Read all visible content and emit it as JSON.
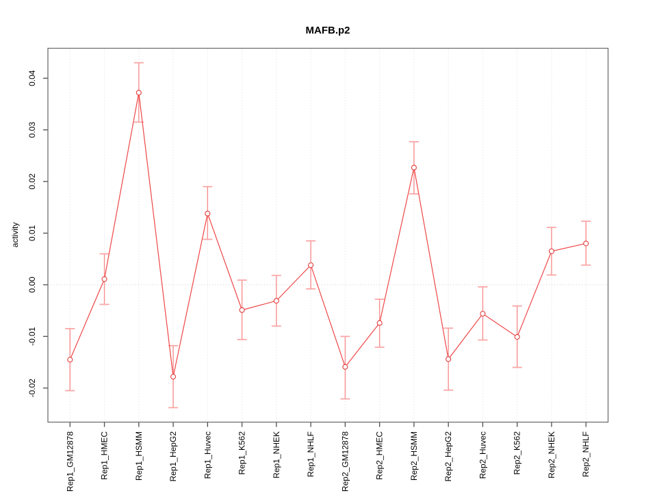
{
  "window": {
    "background": "#ffffff"
  },
  "chart_data": {
    "type": "line",
    "title": "MAFB.p2",
    "xlabel": "",
    "ylabel": "activity",
    "legend": "none",
    "grid": {
      "vertical_dotted_per_category": true,
      "horizontal_dotted_zero_line": true
    },
    "marker": "open-circle",
    "categories": [
      "Rep1_GM12878",
      "Rep1_HMEC",
      "Rep1_HSMM",
      "Rep1_HepG2",
      "Rep1_Huvec",
      "Rep1_K562",
      "Rep1_NHEK",
      "Rep1_NHLF",
      "Rep2_GM12878",
      "Rep2_HMEC",
      "Rep2_HSMM",
      "Rep2_HepG2",
      "Rep2_Huvec",
      "Rep2_K562",
      "Rep2_NHEK",
      "Rep2_NHLF"
    ],
    "series": [
      {
        "name": "activity",
        "values": [
          -0.0145,
          0.0011,
          0.0372,
          -0.0178,
          0.0138,
          -0.0049,
          -0.0031,
          0.0038,
          -0.0159,
          -0.0074,
          0.0227,
          -0.0144,
          -0.0056,
          -0.0101,
          0.0065,
          0.008
        ],
        "upper": [
          -0.0085,
          0.006,
          0.043,
          -0.0118,
          0.019,
          0.0009,
          0.0018,
          0.0085,
          -0.01,
          -0.0028,
          0.0277,
          -0.0084,
          -0.0004,
          -0.0041,
          0.0111,
          0.0123
        ],
        "lower": [
          -0.0205,
          -0.0038,
          0.0315,
          -0.0238,
          0.0088,
          -0.0106,
          -0.008,
          -0.0008,
          -0.0221,
          -0.0121,
          0.0176,
          -0.0204,
          -0.0107,
          -0.016,
          0.0019,
          0.0038
        ]
      }
    ],
    "ylim": [
      -0.0266,
      0.0458
    ],
    "yticks": [
      -0.02,
      -0.01,
      0.0,
      0.01,
      0.02,
      0.03,
      0.04
    ],
    "ytick_labels": [
      "-0.02",
      "-0.01",
      "0.00",
      "0.01",
      "0.02",
      "0.03",
      "0.04"
    ],
    "colors": {
      "line": "#ef4545",
      "point_stroke": "#e23b3b",
      "point_fill": "#ffffff",
      "error_bar": "#f78f8f",
      "error_cap": "#fba6a6",
      "grid": "#d9d9d9",
      "zero_line": "#d0d0d0",
      "box": "#6e6e6e",
      "tick": "#4d4d4d",
      "text": "#000000"
    }
  }
}
